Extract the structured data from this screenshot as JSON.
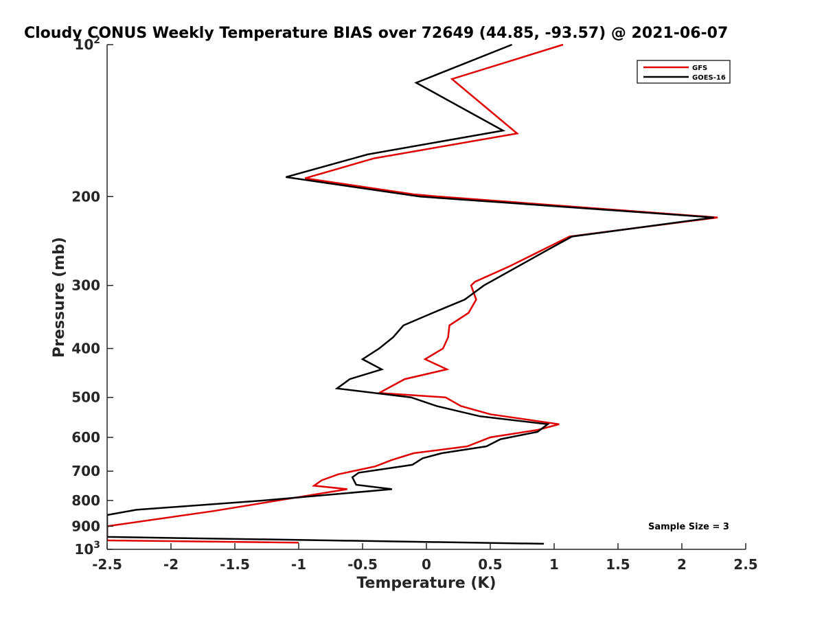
{
  "chart_data": {
    "type": "line",
    "title": "Cloudy CONUS Weekly Temperature BIAS over 72649 (44.85, -93.57) @ 2021-06-07",
    "xlabel": "Temperature (K)",
    "ylabel": "Pressure (mb)",
    "xlim": [
      -2.5,
      2.5
    ],
    "ylim": [
      100,
      1000
    ],
    "y_scale": "log",
    "y_reversed": true,
    "grid": false,
    "legend_position": "top-right",
    "x_ticks": [
      -2.5,
      -2,
      -1.5,
      -1,
      -0.5,
      0,
      0.5,
      1,
      1.5,
      2,
      2.5
    ],
    "x_tick_labels": [
      "-2.5",
      "-2",
      "-1.5",
      "-1",
      "-0.5",
      "0",
      "0.5",
      "1",
      "1.5",
      "2",
      "2.5"
    ],
    "y_ticks": [
      {
        "value": 100,
        "base": "10",
        "exp": "2"
      },
      {
        "value": 200,
        "label": "200"
      },
      {
        "value": 300,
        "label": "300"
      },
      {
        "value": 400,
        "label": "400"
      },
      {
        "value": 500,
        "label": "500"
      },
      {
        "value": 600,
        "label": "600"
      },
      {
        "value": 700,
        "label": "700"
      },
      {
        "value": 800,
        "label": "800"
      },
      {
        "value": 900,
        "label": "900"
      },
      {
        "value": 1000,
        "base": "10",
        "exp": "3"
      }
    ],
    "annotation": "Sample Size = 3",
    "series": [
      {
        "name": "GFS",
        "color": "#e00000",
        "points": [
          [
            1.07,
            100
          ],
          [
            0.2,
            117
          ],
          [
            0.71,
            150
          ],
          [
            -0.41,
            168
          ],
          [
            -0.95,
            184
          ],
          [
            -0.1,
            198
          ],
          [
            0.1,
            200
          ],
          [
            2.28,
            220
          ],
          [
            1.12,
            240
          ],
          [
            0.65,
            275
          ],
          [
            0.38,
            295
          ],
          [
            0.35,
            300
          ],
          [
            0.39,
            320
          ],
          [
            0.33,
            340
          ],
          [
            0.18,
            360
          ],
          [
            0.17,
            380
          ],
          [
            0.13,
            400
          ],
          [
            -0.01,
            420
          ],
          [
            0.16,
            440
          ],
          [
            -0.17,
            460
          ],
          [
            -0.37,
            490
          ],
          [
            0.15,
            500
          ],
          [
            0.27,
            520
          ],
          [
            0.5,
            540
          ],
          [
            1.04,
            565
          ],
          [
            0.87,
            580
          ],
          [
            0.5,
            600
          ],
          [
            0.32,
            625
          ],
          [
            -0.1,
            645
          ],
          [
            -0.27,
            665
          ],
          [
            -0.4,
            685
          ],
          [
            -0.69,
            710
          ],
          [
            -0.82,
            730
          ],
          [
            -0.88,
            748
          ],
          [
            -0.62,
            760
          ],
          [
            -1.16,
            800
          ],
          [
            -1.67,
            840
          ],
          [
            -2.5,
            900
          ],
          [
            -2.5,
            960
          ],
          [
            -1.0,
            970
          ]
        ]
      },
      {
        "name": "GOES-16",
        "color": "#000000",
        "points": [
          [
            0.67,
            100
          ],
          [
            -0.08,
            119
          ],
          [
            0.6,
            148
          ],
          [
            -0.46,
            165
          ],
          [
            -1.1,
            183
          ],
          [
            -0.05,
            200
          ],
          [
            2.25,
            220
          ],
          [
            1.14,
            240
          ],
          [
            0.95,
            255
          ],
          [
            0.45,
            300
          ],
          [
            0.3,
            320
          ],
          [
            0.05,
            340
          ],
          [
            -0.18,
            360
          ],
          [
            -0.26,
            380
          ],
          [
            -0.37,
            400
          ],
          [
            -0.5,
            420
          ],
          [
            -0.35,
            440
          ],
          [
            -0.6,
            460
          ],
          [
            -0.7,
            480
          ],
          [
            -0.12,
            500
          ],
          [
            0.08,
            520
          ],
          [
            0.42,
            545
          ],
          [
            0.95,
            565
          ],
          [
            0.87,
            585
          ],
          [
            0.58,
            605
          ],
          [
            0.47,
            625
          ],
          [
            0.12,
            645
          ],
          [
            -0.03,
            660
          ],
          [
            -0.11,
            680
          ],
          [
            -0.53,
            705
          ],
          [
            -0.58,
            720
          ],
          [
            -0.55,
            745
          ],
          [
            -0.27,
            760
          ],
          [
            -1.27,
            800
          ],
          [
            -2.27,
            835
          ],
          [
            -2.5,
            855
          ],
          [
            -2.5,
            945
          ],
          [
            0.92,
            975
          ]
        ]
      }
    ]
  }
}
